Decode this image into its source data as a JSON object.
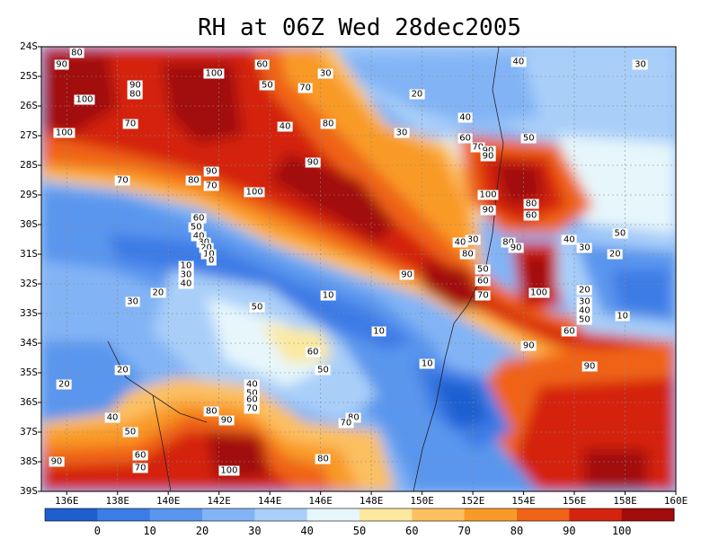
{
  "title": "RH at 06Z Wed 28dec2005",
  "map": {
    "lat_labels": [
      "24S",
      "25S",
      "26S",
      "27S",
      "28S",
      "29S",
      "30S",
      "31S",
      "32S",
      "33S",
      "34S",
      "35S",
      "36S",
      "37S",
      "38S",
      "39S"
    ],
    "lon_labels": [
      "136E",
      "138E",
      "140E",
      "142E",
      "144E",
      "146E",
      "148E",
      "150E",
      "152E",
      "154E",
      "156E",
      "158E",
      "160E"
    ],
    "lat_range": [
      -39,
      -24
    ],
    "lon_range": [
      135,
      160
    ],
    "colorbar_labels": [
      "0",
      "10",
      "20",
      "30",
      "40",
      "50",
      "60",
      "70",
      "80",
      "90",
      "100"
    ],
    "colorbar_colors": [
      "#1e5fd0",
      "#3c7ce6",
      "#5a96ee",
      "#82b4f5",
      "#a9cff9",
      "#e6f6fb",
      "#fce9a0",
      "#fcc060",
      "#f99a28",
      "#f06418",
      "#d42410",
      "#a20c0c"
    ],
    "contour_labels": [
      {
        "t": "80",
        "lon": 136.4,
        "lat": -24.2
      },
      {
        "t": "90",
        "lon": 135.8,
        "lat": -24.6
      },
      {
        "t": "100",
        "lon": 141.8,
        "lat": -24.9
      },
      {
        "t": "60",
        "lon": 143.7,
        "lat": -24.6
      },
      {
        "t": "30",
        "lon": 146.2,
        "lat": -24.9
      },
      {
        "t": "40",
        "lon": 153.8,
        "lat": -24.5
      },
      {
        "t": "30",
        "lon": 158.6,
        "lat": -24.6
      },
      {
        "t": "50",
        "lon": 143.9,
        "lat": -25.3
      },
      {
        "t": "70",
        "lon": 145.4,
        "lat": -25.4
      },
      {
        "t": "90",
        "lon": 138.7,
        "lat": -25.3
      },
      {
        "t": "80",
        "lon": 138.7,
        "lat": -25.6
      },
      {
        "t": "100",
        "lon": 136.7,
        "lat": -25.8
      },
      {
        "t": "20",
        "lon": 149.8,
        "lat": -25.6
      },
      {
        "t": "70",
        "lon": 138.5,
        "lat": -26.6
      },
      {
        "t": "40",
        "lon": 144.6,
        "lat": -26.7
      },
      {
        "t": "80",
        "lon": 146.3,
        "lat": -26.6
      },
      {
        "t": "40",
        "lon": 151.7,
        "lat": -26.4
      },
      {
        "t": "100",
        "lon": 135.9,
        "lat": -26.9
      },
      {
        "t": "30",
        "lon": 149.2,
        "lat": -26.9
      },
      {
        "t": "60",
        "lon": 151.7,
        "lat": -27.1
      },
      {
        "t": "50",
        "lon": 154.2,
        "lat": -27.1
      },
      {
        "t": "70",
        "lon": 152.2,
        "lat": -27.4
      },
      {
        "t": "90",
        "lon": 152.6,
        "lat": -27.5
      },
      {
        "t": "90",
        "lon": 152.6,
        "lat": -27.7
      },
      {
        "t": "90",
        "lon": 145.7,
        "lat": -27.9
      },
      {
        "t": "90",
        "lon": 141.7,
        "lat": -28.2
      },
      {
        "t": "70",
        "lon": 138.2,
        "lat": -28.5
      },
      {
        "t": "80",
        "lon": 141.0,
        "lat": -28.5
      },
      {
        "t": "70",
        "lon": 141.7,
        "lat": -28.7
      },
      {
        "t": "100",
        "lon": 143.4,
        "lat": -28.9
      },
      {
        "t": "100",
        "lon": 152.6,
        "lat": -29.0
      },
      {
        "t": "80",
        "lon": 154.3,
        "lat": -29.3
      },
      {
        "t": "90",
        "lon": 152.6,
        "lat": -29.5
      },
      {
        "t": "60",
        "lon": 154.3,
        "lat": -29.7
      },
      {
        "t": "60",
        "lon": 141.2,
        "lat": -29.8
      },
      {
        "t": "50",
        "lon": 141.1,
        "lat": -30.1
      },
      {
        "t": "50",
        "lon": 157.8,
        "lat": -30.3
      },
      {
        "t": "40",
        "lon": 141.2,
        "lat": -30.4
      },
      {
        "t": "30",
        "lon": 141.4,
        "lat": -30.6
      },
      {
        "t": "20",
        "lon": 141.5,
        "lat": -30.8
      },
      {
        "t": "10",
        "lon": 141.6,
        "lat": -31.0
      },
      {
        "t": "0",
        "lon": 141.7,
        "lat": -31.2
      },
      {
        "t": "40",
        "lon": 151.5,
        "lat": -30.6
      },
      {
        "t": "30",
        "lon": 152.0,
        "lat": -30.5
      },
      {
        "t": "80",
        "lon": 153.4,
        "lat": -30.6
      },
      {
        "t": "90",
        "lon": 153.7,
        "lat": -30.8
      },
      {
        "t": "40",
        "lon": 155.8,
        "lat": -30.5
      },
      {
        "t": "30",
        "lon": 156.4,
        "lat": -30.8
      },
      {
        "t": "20",
        "lon": 157.6,
        "lat": -31.0
      },
      {
        "t": "80",
        "lon": 151.8,
        "lat": -31.0
      },
      {
        "t": "10",
        "lon": 140.7,
        "lat": -31.4
      },
      {
        "t": "30",
        "lon": 140.7,
        "lat": -31.7
      },
      {
        "t": "40",
        "lon": 140.7,
        "lat": -32.0
      },
      {
        "t": "90",
        "lon": 149.4,
        "lat": -31.7
      },
      {
        "t": "50",
        "lon": 152.4,
        "lat": -31.5
      },
      {
        "t": "60",
        "lon": 152.4,
        "lat": -31.9
      },
      {
        "t": "100",
        "lon": 154.6,
        "lat": -32.3
      },
      {
        "t": "70",
        "lon": 152.4,
        "lat": -32.4
      },
      {
        "t": "20",
        "lon": 156.4,
        "lat": -32.2
      },
      {
        "t": "30",
        "lon": 138.6,
        "lat": -32.6
      },
      {
        "t": "20",
        "lon": 139.6,
        "lat": -32.3
      },
      {
        "t": "10",
        "lon": 146.3,
        "lat": -32.4
      },
      {
        "t": "30",
        "lon": 156.4,
        "lat": -32.6
      },
      {
        "t": "40",
        "lon": 156.4,
        "lat": -32.9
      },
      {
        "t": "50",
        "lon": 156.4,
        "lat": -33.2
      },
      {
        "t": "10",
        "lon": 157.9,
        "lat": -33.1
      },
      {
        "t": "60",
        "lon": 155.8,
        "lat": -33.6
      },
      {
        "t": "50",
        "lon": 143.5,
        "lat": -32.8
      },
      {
        "t": "10",
        "lon": 148.3,
        "lat": -33.6
      },
      {
        "t": "60",
        "lon": 145.7,
        "lat": -34.3
      },
      {
        "t": "90",
        "lon": 154.2,
        "lat": -34.1
      },
      {
        "t": "50",
        "lon": 146.1,
        "lat": -34.9
      },
      {
        "t": "10",
        "lon": 150.2,
        "lat": -34.7
      },
      {
        "t": "90",
        "lon": 156.6,
        "lat": -34.8
      },
      {
        "t": "20",
        "lon": 138.2,
        "lat": -34.9
      },
      {
        "t": "20",
        "lon": 135.9,
        "lat": -35.4
      },
      {
        "t": "40",
        "lon": 143.3,
        "lat": -35.4
      },
      {
        "t": "50",
        "lon": 143.3,
        "lat": -35.7
      },
      {
        "t": "60",
        "lon": 143.3,
        "lat": -35.9
      },
      {
        "t": "70",
        "lon": 143.3,
        "lat": -36.2
      },
      {
        "t": "80",
        "lon": 141.7,
        "lat": -36.3
      },
      {
        "t": "90",
        "lon": 142.3,
        "lat": -36.6
      },
      {
        "t": "40",
        "lon": 137.8,
        "lat": -36.5
      },
      {
        "t": "80",
        "lon": 147.3,
        "lat": -36.5
      },
      {
        "t": "70",
        "lon": 147.0,
        "lat": -36.7
      },
      {
        "t": "50",
        "lon": 138.5,
        "lat": -37.0
      },
      {
        "t": "60",
        "lon": 138.9,
        "lat": -37.8
      },
      {
        "t": "80",
        "lon": 146.1,
        "lat": -37.9
      },
      {
        "t": "90",
        "lon": 135.6,
        "lat": -38.0
      },
      {
        "t": "70",
        "lon": 138.9,
        "lat": -38.2
      },
      {
        "t": "100",
        "lon": 142.4,
        "lat": -38.3
      }
    ]
  }
}
